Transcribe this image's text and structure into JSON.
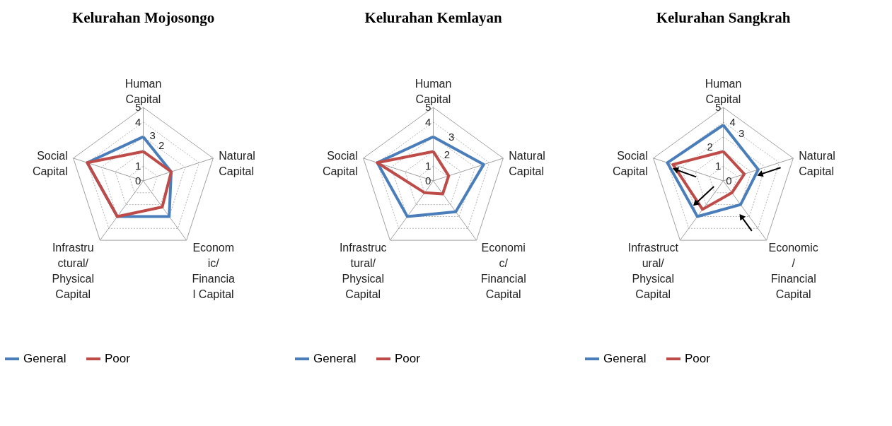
{
  "chart_data": [
    {
      "type": "radar",
      "title": "Kelurahan Mojosongo",
      "categories": [
        "Human\nCapital",
        "Natural\nCapital",
        "Econom\nic/\nFinancia\nl Capital",
        "Infrastru\nctural/\nPhysical\nCapital",
        "Social\nCapital"
      ],
      "series": [
        {
          "name": "General",
          "color": "#4a7ebb",
          "values": [
            3,
            2,
            3,
            3,
            4
          ]
        },
        {
          "name": "Poor",
          "color": "#be4b48",
          "values": [
            2,
            2,
            2.2,
            3,
            4
          ]
        }
      ],
      "ylim": [
        0,
        5
      ],
      "yticks": [
        0,
        1,
        2,
        3,
        4,
        5
      ],
      "grid": true,
      "legend": "bottom"
    },
    {
      "type": "radar",
      "title": "Kelurahan Kemlayan",
      "categories": [
        "Human\nCapital",
        "Natural\nCapital",
        "Economi\nc/\nFinancial\nCapital",
        "Infrastruc\ntural/\nPhysical\nCapital",
        "Social\nCapital"
      ],
      "series": [
        {
          "name": "General",
          "color": "#4a7ebb",
          "values": [
            3,
            3.6,
            2.6,
            3,
            4
          ]
        },
        {
          "name": "Poor",
          "color": "#be4b48",
          "values": [
            2,
            1.1,
            1.1,
            1,
            4
          ]
        }
      ],
      "ylim": [
        0,
        5
      ],
      "yticks": [
        0,
        1,
        2,
        3,
        4,
        5
      ],
      "grid": true,
      "legend": "bottom"
    },
    {
      "type": "radar",
      "title": "Kelurahan Sangkrah",
      "categories": [
        "Human\nCapital",
        "Natural\nCapital",
        "Economic\n/\nFinancial\nCapital",
        "Infrastruct\nural/\nPhysical\nCapital",
        "Social\nCapital"
      ],
      "series": [
        {
          "name": "General",
          "color": "#4a7ebb",
          "values": [
            3.8,
            2.5,
            2,
            3,
            4
          ]
        },
        {
          "name": "Poor",
          "color": "#be4b48",
          "values": [
            2,
            1.5,
            1,
            2.4,
            3.6
          ]
        }
      ],
      "ylim": [
        0,
        5
      ],
      "yticks": [
        0,
        1,
        2,
        3,
        4,
        5
      ],
      "grid": true,
      "legend": "bottom"
    }
  ]
}
